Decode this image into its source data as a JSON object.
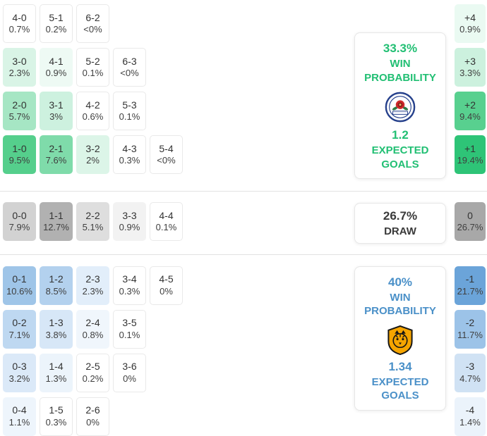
{
  "colors": {
    "home_accent": "#21bf73",
    "away_accent": "#4a90c8",
    "draw_text": "#3a3a3a",
    "separator": "#e2e2e2"
  },
  "panels": {
    "home": {
      "win_pct": "33.3%",
      "win_line1": "WIN",
      "win_line2": "PROBABILITY",
      "badge_icon": "blackburn-rovers-crest-icon",
      "xg": "1.2",
      "xg_line1": "EXPECTED",
      "xg_line2": "GOALS"
    },
    "draw": {
      "pct": "26.7%",
      "label": "DRAW"
    },
    "away": {
      "win_pct": "40%",
      "win_line1": "WIN",
      "win_line2": "PROBABILITY",
      "badge_icon": "hull-city-crest-icon",
      "xg": "1.34",
      "xg_line1": "EXPECTED",
      "xg_line2": "GOALS"
    }
  },
  "chart_data": {
    "type": "heatmap",
    "title": "Correct score probability matrix with win/draw probabilities and expected goals",
    "sections": {
      "home": {
        "rows": [
          [
            {
              "s": "4-0",
              "p": "0.7%",
              "bg": ""
            },
            {
              "s": "5-1",
              "p": "0.2%",
              "bg": ""
            },
            {
              "s": "6-2",
              "p": "<0%",
              "bg": ""
            }
          ],
          [
            {
              "s": "3-0",
              "p": "2.3%",
              "bg": "#d9f4e6"
            },
            {
              "s": "4-1",
              "p": "0.9%",
              "bg": "#eefaf4"
            },
            {
              "s": "5-2",
              "p": "0.1%",
              "bg": ""
            },
            {
              "s": "6-3",
              "p": "<0%",
              "bg": ""
            }
          ],
          [
            {
              "s": "2-0",
              "p": "5.7%",
              "bg": "#a6e6c4"
            },
            {
              "s": "3-1",
              "p": "3%",
              "bg": "#cdf1df"
            },
            {
              "s": "4-2",
              "p": "0.6%",
              "bg": ""
            },
            {
              "s": "5-3",
              "p": "0.1%",
              "bg": ""
            }
          ],
          [
            {
              "s": "1-0",
              "p": "9.5%",
              "bg": "#55cf8c"
            },
            {
              "s": "2-1",
              "p": "7.6%",
              "bg": "#7fdbaa"
            },
            {
              "s": "3-2",
              "p": "2%",
              "bg": "#dcf5e8"
            },
            {
              "s": "4-3",
              "p": "0.3%",
              "bg": ""
            },
            {
              "s": "5-4",
              "p": "<0%",
              "bg": ""
            }
          ]
        ],
        "diff": [
          {
            "s": "+4",
            "p": "0.9%",
            "bg": "#eafaf2"
          },
          {
            "s": "+3",
            "p": "3.3%",
            "bg": "#ccf1de"
          },
          {
            "s": "+2",
            "p": "9.4%",
            "bg": "#58d08f"
          },
          {
            "s": "+1",
            "p": "19.4%",
            "bg": "#2ec477"
          }
        ]
      },
      "draw": {
        "rows": [
          [
            {
              "s": "0-0",
              "p": "7.9%",
              "bg": "#d2d2d2"
            },
            {
              "s": "1-1",
              "p": "12.7%",
              "bg": "#b1b1b1"
            },
            {
              "s": "2-2",
              "p": "5.1%",
              "bg": "#dedede"
            },
            {
              "s": "3-3",
              "p": "0.9%",
              "bg": "#f2f2f2"
            },
            {
              "s": "4-4",
              "p": "0.1%",
              "bg": ""
            }
          ]
        ],
        "diff": [
          {
            "s": "0",
            "p": "26.7%",
            "bg": "#a8a8a8"
          }
        ]
      },
      "away": {
        "rows": [
          [
            {
              "s": "0-1",
              "p": "10.6%",
              "bg": "#9fc5e8"
            },
            {
              "s": "1-2",
              "p": "8.5%",
              "bg": "#b3d1ee"
            },
            {
              "s": "2-3",
              "p": "2.3%",
              "bg": "#e2eefa"
            },
            {
              "s": "3-4",
              "p": "0.3%",
              "bg": ""
            },
            {
              "s": "4-5",
              "p": "0%",
              "bg": ""
            }
          ],
          [
            {
              "s": "0-2",
              "p": "7.1%",
              "bg": "#bed8f1"
            },
            {
              "s": "1-3",
              "p": "3.8%",
              "bg": "#d7e7f7"
            },
            {
              "s": "2-4",
              "p": "0.8%",
              "bg": "#f0f6fc"
            },
            {
              "s": "3-5",
              "p": "0.1%",
              "bg": ""
            }
          ],
          [
            {
              "s": "0-3",
              "p": "3.2%",
              "bg": "#dbe9f8"
            },
            {
              "s": "1-4",
              "p": "1.3%",
              "bg": "#ecf4fb"
            },
            {
              "s": "2-5",
              "p": "0.2%",
              "bg": ""
            },
            {
              "s": "3-6",
              "p": "0%",
              "bg": ""
            }
          ],
          [
            {
              "s": "0-4",
              "p": "1.1%",
              "bg": "#eef5fc"
            },
            {
              "s": "1-5",
              "p": "0.3%",
              "bg": ""
            },
            {
              "s": "2-6",
              "p": "0%",
              "bg": ""
            }
          ]
        ],
        "diff": [
          {
            "s": "-1",
            "p": "21.7%",
            "bg": "#6ba4d9"
          },
          {
            "s": "-2",
            "p": "11.7%",
            "bg": "#9cc3e8"
          },
          {
            "s": "-3",
            "p": "4.7%",
            "bg": "#d0e2f4"
          },
          {
            "s": "-4",
            "p": "1.4%",
            "bg": "#ebf3fb"
          }
        ]
      }
    }
  }
}
